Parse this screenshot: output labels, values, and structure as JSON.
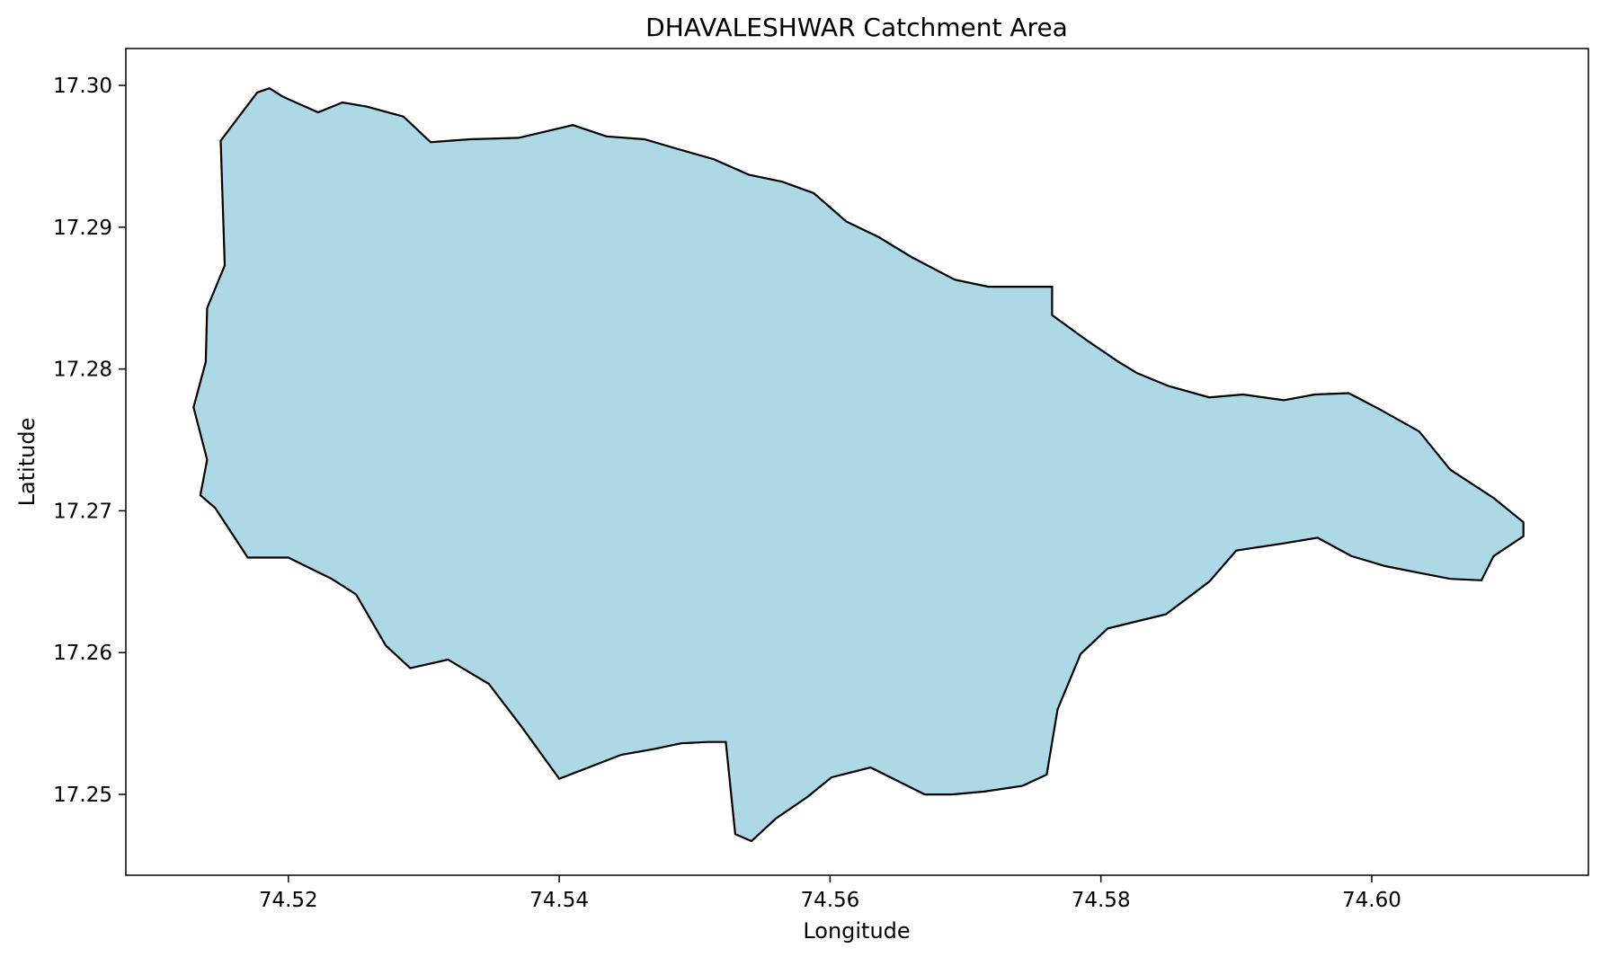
{
  "chart_data": {
    "type": "area",
    "title": "DHAVALESHWAR Catchment Area",
    "xlabel": "Longitude",
    "ylabel": "Latitude",
    "xlim": [
      74.508,
      74.616
    ],
    "ylim": [
      17.2443,
      17.3026
    ],
    "xticks": [
      74.52,
      74.54,
      74.56,
      74.58,
      74.6
    ],
    "xtick_labels": [
      "74.52",
      "74.54",
      "74.56",
      "74.58",
      "74.60"
    ],
    "yticks": [
      17.25,
      17.26,
      17.27,
      17.28,
      17.29,
      17.3
    ],
    "ytick_labels": [
      "17.25",
      "17.26",
      "17.27",
      "17.28",
      "17.29",
      "17.30"
    ],
    "grid": false,
    "legend": "none",
    "fill_color": "#add8e6",
    "edge_color": "#000000",
    "boundary": {
      "lon": [
        74.5177,
        74.5186,
        74.5196,
        74.5222,
        74.524,
        74.5258,
        74.5285,
        74.5305,
        74.5334,
        74.537,
        74.541,
        74.5435,
        74.5463,
        74.5488,
        74.5514,
        74.554,
        74.5565,
        74.5588,
        74.5612,
        74.5636,
        74.566,
        74.5692,
        74.5717,
        74.5748,
        74.5764,
        74.5764,
        74.579,
        74.5813,
        74.5827,
        74.585,
        74.588,
        74.5905,
        74.5935,
        74.5958,
        74.5983,
        74.6005,
        74.6035,
        74.6058,
        74.609,
        74.6112,
        74.6112,
        74.609,
        74.6081,
        74.6058,
        74.6031,
        74.601,
        74.5985,
        74.596,
        74.5935,
        74.59,
        74.588,
        74.5848,
        74.5805,
        74.5785,
        74.5768,
        74.576,
        74.5742,
        74.5714,
        74.569,
        74.567,
        74.563,
        74.5601,
        74.5583,
        74.556,
        74.5542,
        74.553,
        74.5523,
        74.551,
        74.549,
        74.547,
        74.5446,
        74.54,
        74.5372,
        74.5348,
        74.5318,
        74.529,
        74.5272,
        74.525,
        74.5232,
        74.52,
        74.517,
        74.5146,
        74.5135,
        74.514,
        74.513,
        74.5139,
        74.514,
        74.5153,
        74.515
      ],
      "lat": [
        17.2995,
        17.2998,
        17.2992,
        17.2981,
        17.2988,
        17.2985,
        17.2978,
        17.296,
        17.2962,
        17.2963,
        17.2972,
        17.2964,
        17.2962,
        17.2955,
        17.2948,
        17.2937,
        17.2932,
        17.2924,
        17.2904,
        17.2893,
        17.2879,
        17.2863,
        17.2858,
        17.2858,
        17.2858,
        17.2838,
        17.282,
        17.2805,
        17.2797,
        17.2788,
        17.278,
        17.2782,
        17.2778,
        17.2782,
        17.2783,
        17.2772,
        17.2756,
        17.2729,
        17.2709,
        17.2692,
        17.2682,
        17.2668,
        17.2651,
        17.2652,
        17.2657,
        17.2661,
        17.2668,
        17.2681,
        17.2677,
        17.2672,
        17.265,
        17.2627,
        17.2617,
        17.2599,
        17.256,
        17.2514,
        17.2506,
        17.2502,
        17.25,
        17.25,
        17.2519,
        17.2512,
        17.2498,
        17.2483,
        17.2467,
        17.2472,
        17.2537,
        17.2537,
        17.2536,
        17.2532,
        17.2528,
        17.2511,
        17.2548,
        17.2578,
        17.2595,
        17.2589,
        17.2605,
        17.2641,
        17.2652,
        17.2667,
        17.2667,
        17.2702,
        17.2711,
        17.2736,
        17.2773,
        17.2805,
        17.2843,
        17.2873,
        17.2961
      ]
    }
  }
}
